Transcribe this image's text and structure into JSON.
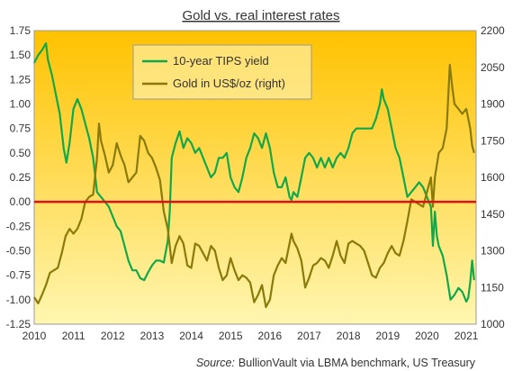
{
  "chart_data": {
    "type": "line",
    "title": "Gold vs. real interest rates",
    "source_label": "Source:",
    "source_text": "BullionVault via LBMA benchmark, US Treasury",
    "x_ticks": [
      "2010",
      "2011",
      "2012",
      "2013",
      "2014",
      "2015",
      "2016",
      "2017",
      "2018",
      "2019",
      "2020",
      "2021"
    ],
    "x_range": [
      2010,
      2021.25
    ],
    "y_left": {
      "range": [
        -1.25,
        1.75
      ],
      "ticks": [
        "1.75",
        "1.50",
        "1.25",
        "1.00",
        "0.75",
        "0.50",
        "0.25",
        "0.00",
        "-0.25",
        "-0.50",
        "-0.75",
        "-1.00",
        "-1.25"
      ]
    },
    "y_right": {
      "range": [
        1000,
        2200
      ],
      "ticks": [
        "2200",
        "2050",
        "1900",
        "1750",
        "1600",
        "1450",
        "1300",
        "1150",
        "1000"
      ]
    },
    "reference_line": {
      "y": 0.0,
      "color": "#dd1111"
    },
    "background_gradient": [
      "#ffc200",
      "#fff6b0"
    ],
    "series": [
      {
        "name": "10-year TIPS yield",
        "axis": "left",
        "color": "#10a84a",
        "points": [
          [
            2010.0,
            1.42
          ],
          [
            2010.1,
            1.5
          ],
          [
            2010.2,
            1.55
          ],
          [
            2010.3,
            1.62
          ],
          [
            2010.35,
            1.45
          ],
          [
            2010.45,
            1.3
          ],
          [
            2010.55,
            1.1
          ],
          [
            2010.65,
            0.9
          ],
          [
            2010.75,
            0.55
          ],
          [
            2010.82,
            0.4
          ],
          [
            2010.9,
            0.6
          ],
          [
            2011.0,
            0.95
          ],
          [
            2011.1,
            1.05
          ],
          [
            2011.2,
            0.95
          ],
          [
            2011.3,
            0.8
          ],
          [
            2011.4,
            0.65
          ],
          [
            2011.5,
            0.45
          ],
          [
            2011.6,
            0.1
          ],
          [
            2011.7,
            0.05
          ],
          [
            2011.8,
            0.0
          ],
          [
            2011.9,
            -0.05
          ],
          [
            2012.0,
            -0.15
          ],
          [
            2012.1,
            -0.25
          ],
          [
            2012.2,
            -0.3
          ],
          [
            2012.3,
            -0.45
          ],
          [
            2012.4,
            -0.6
          ],
          [
            2012.5,
            -0.7
          ],
          [
            2012.6,
            -0.7
          ],
          [
            2012.7,
            -0.78
          ],
          [
            2012.8,
            -0.8
          ],
          [
            2012.9,
            -0.72
          ],
          [
            2013.0,
            -0.65
          ],
          [
            2013.1,
            -0.6
          ],
          [
            2013.2,
            -0.6
          ],
          [
            2013.3,
            -0.62
          ],
          [
            2013.4,
            -0.4
          ],
          [
            2013.45,
            -0.1
          ],
          [
            2013.5,
            0.45
          ],
          [
            2013.6,
            0.6
          ],
          [
            2013.7,
            0.72
          ],
          [
            2013.8,
            0.55
          ],
          [
            2013.9,
            0.65
          ],
          [
            2014.0,
            0.6
          ],
          [
            2014.1,
            0.5
          ],
          [
            2014.2,
            0.55
          ],
          [
            2014.3,
            0.45
          ],
          [
            2014.4,
            0.35
          ],
          [
            2014.5,
            0.25
          ],
          [
            2014.6,
            0.3
          ],
          [
            2014.7,
            0.45
          ],
          [
            2014.8,
            0.45
          ],
          [
            2014.9,
            0.5
          ],
          [
            2015.0,
            0.25
          ],
          [
            2015.1,
            0.15
          ],
          [
            2015.2,
            0.1
          ],
          [
            2015.3,
            0.25
          ],
          [
            2015.4,
            0.45
          ],
          [
            2015.5,
            0.55
          ],
          [
            2015.6,
            0.7
          ],
          [
            2015.7,
            0.65
          ],
          [
            2015.8,
            0.55
          ],
          [
            2015.9,
            0.7
          ],
          [
            2016.0,
            0.55
          ],
          [
            2016.1,
            0.3
          ],
          [
            2016.2,
            0.15
          ],
          [
            2016.3,
            0.15
          ],
          [
            2016.4,
            0.25
          ],
          [
            2016.5,
            0.05
          ],
          [
            2016.55,
            0.02
          ],
          [
            2016.6,
            0.1
          ],
          [
            2016.7,
            0.05
          ],
          [
            2016.8,
            0.25
          ],
          [
            2016.9,
            0.45
          ],
          [
            2017.0,
            0.5
          ],
          [
            2017.1,
            0.45
          ],
          [
            2017.2,
            0.35
          ],
          [
            2017.3,
            0.45
          ],
          [
            2017.4,
            0.35
          ],
          [
            2017.5,
            0.45
          ],
          [
            2017.6,
            0.35
          ],
          [
            2017.7,
            0.45
          ],
          [
            2017.8,
            0.5
          ],
          [
            2017.9,
            0.45
          ],
          [
            2018.0,
            0.55
          ],
          [
            2018.1,
            0.7
          ],
          [
            2018.2,
            0.75
          ],
          [
            2018.3,
            0.75
          ],
          [
            2018.4,
            0.75
          ],
          [
            2018.5,
            0.75
          ],
          [
            2018.6,
            0.75
          ],
          [
            2018.7,
            0.85
          ],
          [
            2018.8,
            1.0
          ],
          [
            2018.85,
            1.15
          ],
          [
            2018.9,
            1.05
          ],
          [
            2019.0,
            0.95
          ],
          [
            2019.1,
            0.75
          ],
          [
            2019.2,
            0.55
          ],
          [
            2019.3,
            0.45
          ],
          [
            2019.4,
            0.25
          ],
          [
            2019.5,
            0.05
          ],
          [
            2019.6,
            0.1
          ],
          [
            2019.7,
            0.15
          ],
          [
            2019.8,
            0.2
          ],
          [
            2019.9,
            0.15
          ],
          [
            2020.0,
            0.05
          ],
          [
            2020.1,
            -0.05
          ],
          [
            2020.15,
            -0.45
          ],
          [
            2020.2,
            -0.1
          ],
          [
            2020.25,
            -0.35
          ],
          [
            2020.3,
            -0.45
          ],
          [
            2020.4,
            -0.55
          ],
          [
            2020.5,
            -0.75
          ],
          [
            2020.6,
            -1.0
          ],
          [
            2020.7,
            -0.95
          ],
          [
            2020.8,
            -0.88
          ],
          [
            2020.9,
            -0.92
          ],
          [
            2021.0,
            -1.02
          ],
          [
            2021.05,
            -0.98
          ],
          [
            2021.1,
            -0.82
          ],
          [
            2021.15,
            -0.6
          ],
          [
            2021.2,
            -0.8
          ]
        ]
      },
      {
        "name": "Gold in US$/oz (right)",
        "axis": "right",
        "color": "#8a7a0a",
        "points": [
          [
            2010.0,
            1110
          ],
          [
            2010.1,
            1085
          ],
          [
            2010.2,
            1120
          ],
          [
            2010.3,
            1160
          ],
          [
            2010.4,
            1210
          ],
          [
            2010.5,
            1220
          ],
          [
            2010.6,
            1230
          ],
          [
            2010.7,
            1290
          ],
          [
            2010.8,
            1360
          ],
          [
            2010.9,
            1390
          ],
          [
            2011.0,
            1370
          ],
          [
            2011.1,
            1390
          ],
          [
            2011.2,
            1430
          ],
          [
            2011.3,
            1500
          ],
          [
            2011.4,
            1520
          ],
          [
            2011.5,
            1530
          ],
          [
            2011.6,
            1680
          ],
          [
            2011.65,
            1820
          ],
          [
            2011.7,
            1750
          ],
          [
            2011.8,
            1690
          ],
          [
            2011.9,
            1620
          ],
          [
            2012.0,
            1650
          ],
          [
            2012.1,
            1740
          ],
          [
            2012.2,
            1690
          ],
          [
            2012.3,
            1650
          ],
          [
            2012.4,
            1580
          ],
          [
            2012.5,
            1600
          ],
          [
            2012.6,
            1620
          ],
          [
            2012.7,
            1770
          ],
          [
            2012.8,
            1750
          ],
          [
            2012.9,
            1700
          ],
          [
            2013.0,
            1680
          ],
          [
            2013.1,
            1640
          ],
          [
            2013.2,
            1590
          ],
          [
            2013.3,
            1460
          ],
          [
            2013.4,
            1390
          ],
          [
            2013.5,
            1250
          ],
          [
            2013.6,
            1320
          ],
          [
            2013.7,
            1360
          ],
          [
            2013.8,
            1330
          ],
          [
            2013.9,
            1240
          ],
          [
            2014.0,
            1230
          ],
          [
            2014.1,
            1330
          ],
          [
            2014.2,
            1320
          ],
          [
            2014.3,
            1290
          ],
          [
            2014.4,
            1260
          ],
          [
            2014.5,
            1320
          ],
          [
            2014.6,
            1300
          ],
          [
            2014.7,
            1230
          ],
          [
            2014.8,
            1180
          ],
          [
            2014.9,
            1200
          ],
          [
            2015.0,
            1270
          ],
          [
            2015.1,
            1220
          ],
          [
            2015.2,
            1180
          ],
          [
            2015.3,
            1200
          ],
          [
            2015.4,
            1190
          ],
          [
            2015.5,
            1170
          ],
          [
            2015.6,
            1090
          ],
          [
            2015.7,
            1120
          ],
          [
            2015.8,
            1160
          ],
          [
            2015.9,
            1070
          ],
          [
            2016.0,
            1100
          ],
          [
            2016.1,
            1200
          ],
          [
            2016.2,
            1240
          ],
          [
            2016.3,
            1270
          ],
          [
            2016.4,
            1250
          ],
          [
            2016.5,
            1330
          ],
          [
            2016.55,
            1370
          ],
          [
            2016.6,
            1340
          ],
          [
            2016.7,
            1310
          ],
          [
            2016.8,
            1260
          ],
          [
            2016.9,
            1150
          ],
          [
            2017.0,
            1190
          ],
          [
            2017.1,
            1240
          ],
          [
            2017.2,
            1250
          ],
          [
            2017.3,
            1270
          ],
          [
            2017.4,
            1260
          ],
          [
            2017.5,
            1230
          ],
          [
            2017.6,
            1280
          ],
          [
            2017.7,
            1340
          ],
          [
            2017.8,
            1280
          ],
          [
            2017.9,
            1250
          ],
          [
            2018.0,
            1330
          ],
          [
            2018.1,
            1340
          ],
          [
            2018.2,
            1330
          ],
          [
            2018.3,
            1320
          ],
          [
            2018.4,
            1300
          ],
          [
            2018.5,
            1250
          ],
          [
            2018.6,
            1200
          ],
          [
            2018.7,
            1190
          ],
          [
            2018.8,
            1230
          ],
          [
            2018.9,
            1250
          ],
          [
            2019.0,
            1290
          ],
          [
            2019.1,
            1320
          ],
          [
            2019.2,
            1290
          ],
          [
            2019.3,
            1280
          ],
          [
            2019.4,
            1340
          ],
          [
            2019.5,
            1420
          ],
          [
            2019.6,
            1510
          ],
          [
            2019.7,
            1500
          ],
          [
            2019.8,
            1490
          ],
          [
            2019.9,
            1480
          ],
          [
            2020.0,
            1540
          ],
          [
            2020.1,
            1600
          ],
          [
            2020.15,
            1480
          ],
          [
            2020.2,
            1600
          ],
          [
            2020.3,
            1700
          ],
          [
            2020.4,
            1720
          ],
          [
            2020.5,
            1800
          ],
          [
            2020.58,
            2060
          ],
          [
            2020.65,
            1960
          ],
          [
            2020.7,
            1900
          ],
          [
            2020.8,
            1880
          ],
          [
            2020.9,
            1860
          ],
          [
            2021.0,
            1880
          ],
          [
            2021.1,
            1800
          ],
          [
            2021.15,
            1730
          ],
          [
            2021.2,
            1700
          ]
        ]
      }
    ],
    "legend": {
      "placement": "top-center",
      "items": [
        "10-year TIPS yield",
        "Gold in US$/oz (right)"
      ]
    },
    "grid": false
  }
}
